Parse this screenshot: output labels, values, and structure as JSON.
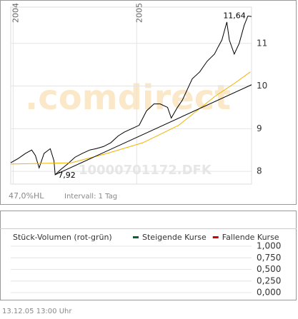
{
  "chart_data": [
    {
      "type": "line",
      "watermark": ".comdirect",
      "subtitle": "10000701172.DFK",
      "range_label": "47,0%HL",
      "interval_label": "Intervall: 1 Tag",
      "xlim": [
        2003.98,
        2005.93
      ],
      "xticks": [
        {
          "value": 2004,
          "label": "2004"
        },
        {
          "value": 2005,
          "label": "2005"
        }
      ],
      "ylim": [
        7.7,
        11.85
      ],
      "yticks": [
        8,
        9,
        10,
        11
      ],
      "grid": true,
      "series": [
        {
          "color": "#000000",
          "x": [
            2003.98,
            2004.04,
            2004.1,
            2004.15,
            2004.18,
            2004.21,
            2004.25,
            2004.3,
            2004.33,
            2004.34,
            2004.38,
            2004.44,
            2004.5,
            2004.56,
            2004.62,
            2004.67,
            2004.73,
            2004.79,
            2004.85,
            2004.9,
            2004.96,
            2005.02,
            2005.08,
            2005.14,
            2005.19,
            2005.25,
            2005.28,
            2005.33,
            2005.37,
            2005.41,
            2005.45,
            2005.51,
            2005.57,
            2005.63,
            2005.66,
            2005.69,
            2005.73,
            2005.75,
            2005.79,
            2005.83,
            2005.87,
            2005.9,
            2005.93
          ],
          "values": [
            8.2,
            8.3,
            8.42,
            8.5,
            8.37,
            8.08,
            8.42,
            8.53,
            8.25,
            7.92,
            8.03,
            8.17,
            8.33,
            8.42,
            8.5,
            8.53,
            8.58,
            8.67,
            8.83,
            8.92,
            9.0,
            9.08,
            9.42,
            9.58,
            9.58,
            9.5,
            9.25,
            9.5,
            9.67,
            9.92,
            10.17,
            10.33,
            10.58,
            10.75,
            10.92,
            11.08,
            11.5,
            11.08,
            10.75,
            11.0,
            11.42,
            11.64,
            11.63
          ],
          "annotations": [
            {
              "index": 41,
              "label": "11,64"
            },
            {
              "index": 9,
              "label": "7,92"
            }
          ]
        },
        {
          "color": "#f0b400",
          "x": [
            2003.98,
            2004.47,
            2004.76,
            2005.05,
            2005.34,
            2005.63,
            2005.8,
            2005.92
          ],
          "values": [
            8.17,
            8.2,
            8.42,
            8.67,
            9.08,
            9.75,
            10.08,
            10.33
          ]
        },
        {
          "color": "#000000",
          "x": [
            2004.34,
            2005.93
          ],
          "values": [
            7.92,
            10.03
          ]
        }
      ]
    },
    {
      "type": "bar",
      "title": "Stück-Volumen (rot-grün)",
      "ylim": [
        0,
        1
      ],
      "yticks": [
        {
          "value": 0,
          "label": "0,000"
        },
        {
          "value": 0.25,
          "label": "0,250"
        },
        {
          "value": 0.5,
          "label": "0,500"
        },
        {
          "value": 0.75,
          "label": "0,750"
        },
        {
          "value": 1,
          "label": "1,000"
        }
      ],
      "grid": true,
      "series": [
        {
          "name": "Steigende Kurse",
          "color": "#006633",
          "values": []
        },
        {
          "name": "Fallende Kurse",
          "color": "#cc0000",
          "values": []
        }
      ],
      "timestamp": "13.12.05   13:00 Uhr"
    }
  ]
}
